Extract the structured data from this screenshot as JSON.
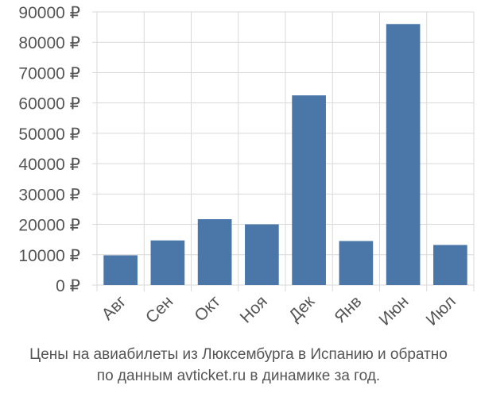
{
  "chart_data": {
    "type": "bar",
    "categories": [
      "Авг",
      "Сен",
      "Окт",
      "Ноя",
      "Дек",
      "Янв",
      "Июн",
      "Июл"
    ],
    "values": [
      9800,
      14700,
      21700,
      20000,
      62500,
      14500,
      86000,
      13200
    ],
    "ylim": [
      0,
      90000
    ],
    "yticks": [
      0,
      10000,
      20000,
      30000,
      40000,
      50000,
      60000,
      70000,
      80000,
      90000
    ],
    "ytick_suffix": " ₽",
    "grid": true,
    "bar_color": "#4a76a8"
  },
  "caption": {
    "line1": "Цены на авиабилеты из Люксембурга в Испанию и обратно",
    "line2": "по данным avticket.ru в динамике за год."
  }
}
